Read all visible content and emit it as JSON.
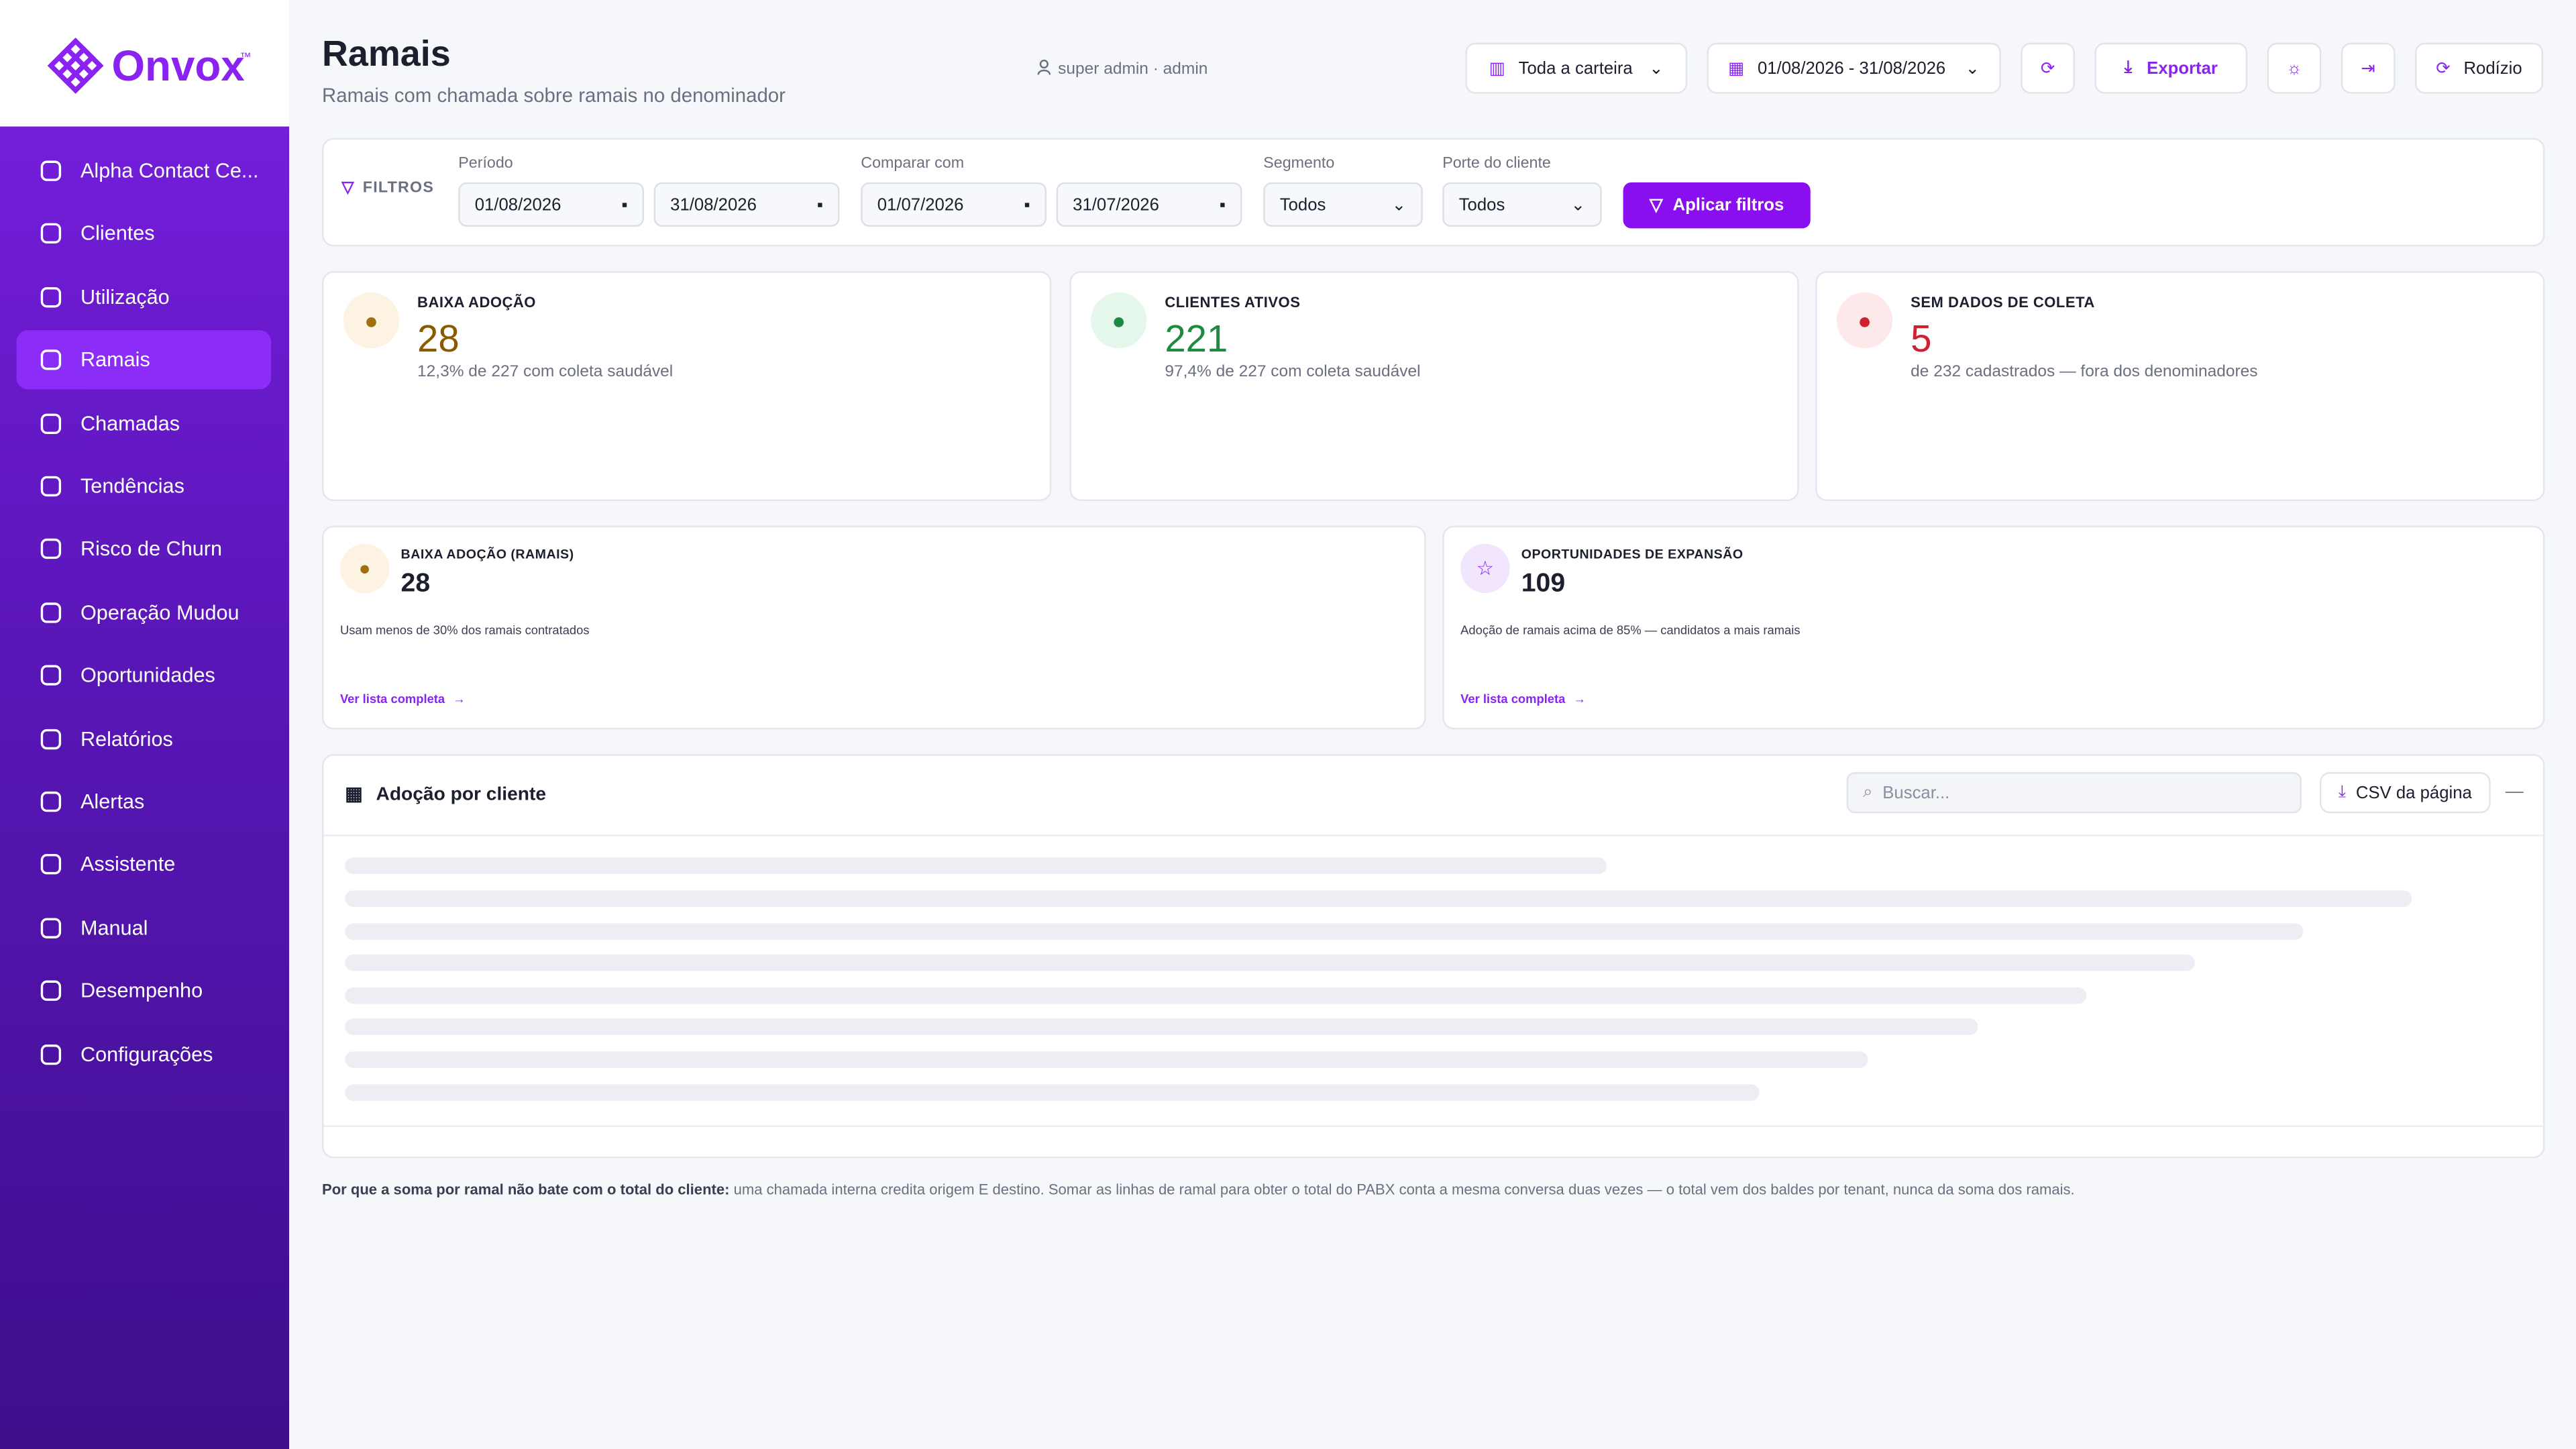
{
  "sidebar": {
    "logo": "Onvox",
    "logo_mark": "™",
    "nav": [
      "Alpha Contact Ce...",
      "Clientes",
      "Utilização",
      "Ramais",
      "Chamadas",
      "Tendências",
      "Risco de Churn",
      "Operação Mudou",
      "Oportunidades",
      "Relatórios",
      "Alertas",
      "Assistente",
      "Manual",
      "Desempenho",
      "Configurações"
    ]
  },
  "header": {
    "title": "Ramais",
    "subtitle": "Ramais com chamada sobre ramais no denominador",
    "user": "super admin · admin",
    "scope": "Toda a carteira",
    "date_range": "01/08/2026 - 31/08/2026",
    "export": "Exportar",
    "rotate": "Rodízio"
  },
  "filters": {
    "label": "FILTROS",
    "period_label": "Período",
    "period_from": "01/08/2026",
    "period_to": "31/08/2026",
    "compare_label": "Comparar com",
    "compare_from": "01/07/2026",
    "compare_to": "31/07/2026",
    "segment_label": "Segmento",
    "segment": "Todos",
    "size_label": "Porte do cliente",
    "size": "Todos",
    "apply": "Aplicar filtros"
  },
  "kpis": [
    {
      "label": "BAIXA ADOÇÃO",
      "value": 28,
      "note": "12,3% de 227 com coleta saudável"
    },
    {
      "label": "CLIENTES ATIVOS",
      "value": 221,
      "note": "97,4% de 227 com coleta saudável"
    },
    {
      "label": "SEM DADOS DE COLETA",
      "value": 5,
      "note": "de 232 cadastrados — fora dos denominadores"
    }
  ],
  "highlights": [
    {
      "label": "BAIXA ADOÇÃO (RAMAIS)",
      "value": 28,
      "note": "Usam menos de 30% dos ramais contratados",
      "link": "Ver lista completa"
    },
    {
      "label": "OPORTUNIDADES DE EXPANSÃO",
      "value": 109,
      "note": "Adoção de ramais acima de 85% — candidatos a mais ramais",
      "link": "Ver lista completa"
    }
  ],
  "table": {
    "title": "Adoção por cliente",
    "search_placeholder": "Buscar...",
    "csv": "CSV da página"
  },
  "footnote": {
    "lead": "Por que a soma por ramal não bate com o total do cliente:",
    "text": " uma chamada interna credita origem E destino. Somar as linhas de ramal para obter o total do PABX conta a mesma conversa duas vezes — o total vem dos baldes por tenant, nunca da soma dos ramais."
  }
}
